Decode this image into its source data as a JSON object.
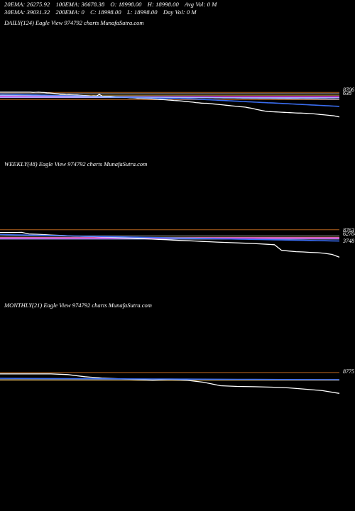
{
  "header": {
    "row1": [
      "20EMA: 26275.92",
      "100EMA: 36678.38",
      "O: 18998.00",
      "H: 18998.00",
      "Avg Vol: 0  M"
    ],
    "row2": [
      "30EMA: 39031.32",
      "200EMA: 0",
      "C: 18998.00",
      "L: 18998.00",
      "Day Vol: 0  M"
    ]
  },
  "colors": {
    "background": "#000000",
    "price": "#ffffff",
    "ema_blue": "#3a6df0",
    "ema_light": "#9fb7ff",
    "magenta": "#e040e0",
    "orange": "#b8641e",
    "grey": "#888888",
    "gold": "#c8a046"
  },
  "chart_data": [
    {
      "type": "line",
      "title": "DAILY(124) Eagle  View  974792  charts MunafaSutra.com",
      "right_labels": [
        "8706",
        "638"
      ],
      "series": [
        {
          "values": [
            7300,
            7300,
            7300,
            7300,
            7300,
            7300,
            7300,
            7300,
            7300,
            7300,
            7300,
            7300,
            7280,
            7290,
            7300,
            7280,
            7270,
            7250,
            7240,
            7220,
            7200,
            7180,
            7150,
            7140,
            7110,
            7120,
            7110,
            7100,
            7100,
            7080,
            7060,
            7050,
            7030,
            7010,
            7020,
            7010,
            7150,
            7010,
            7000,
            7000,
            7000,
            6990,
            6980,
            6960,
            6950,
            6930,
            6920,
            6900,
            6890,
            6880,
            6860,
            6860,
            6850,
            6840,
            6830,
            6820,
            6800,
            6780,
            6770,
            6760,
            6750,
            6730,
            6720,
            6700,
            6690,
            6680,
            6660,
            6640,
            6620,
            6600,
            6580,
            6550,
            6530,
            6510,
            6500,
            6500,
            6480,
            6460,
            6440,
            6420,
            6400,
            6380,
            6360,
            6340,
            6320,
            6300,
            6280,
            6260,
            6240,
            6220,
            6180,
            6150,
            6110,
            6060,
            6020,
            5980,
            5940,
            5910,
            5900,
            5890,
            5880,
            5870,
            5860,
            5850,
            5840,
            5830,
            5820,
            5810,
            5800,
            5800,
            5790,
            5780,
            5770,
            5760,
            5740,
            5720,
            5700,
            5680,
            5660,
            5640,
            5620,
            5600,
            5560,
            5520
          ]
        },
        {
          "values": [
            7160,
            7155,
            7150,
            7145,
            7140,
            7135,
            7130,
            7125,
            7120,
            7115,
            7110,
            7105,
            7100,
            7095,
            7090,
            7085,
            7080,
            7075,
            7070,
            7065,
            7060,
            7055,
            7050,
            7045,
            7040,
            7035,
            7030,
            7025,
            7020,
            7015,
            7010,
            7005,
            7000,
            6995,
            6990,
            6985,
            6980,
            6975,
            6970,
            6965,
            6960,
            6955,
            6950,
            6945,
            6940,
            6935,
            6930,
            6925,
            6920,
            6915,
            6910,
            6905,
            6900,
            6895,
            6890,
            6885,
            6880,
            6875,
            6870,
            6865,
            6860,
            6855,
            6850,
            6845,
            6840,
            6835,
            6830,
            6825,
            6820,
            6815,
            6810,
            6800,
            6790,
            6780,
            6770,
            6760,
            6750,
            6740,
            6730,
            6720,
            6710,
            6700,
            6690,
            6680,
            6670,
            6660,
            6650,
            6640,
            6630,
            6620,
            6610,
            6600,
            6590,
            6580,
            6570,
            6560,
            6550,
            6540,
            6530,
            6520,
            6510,
            6500,
            6490,
            6480,
            6470,
            6460,
            6450,
            6440,
            6430,
            6420,
            6410,
            6400,
            6390,
            6380,
            6370,
            6360,
            6350,
            6340,
            6330,
            6320,
            6310,
            6300,
            6290,
            6280
          ]
        },
        {
          "values": [
            7050,
            7050,
            7048,
            7046,
            7044,
            7042,
            7040,
            7038,
            7036,
            7034,
            7032,
            7030,
            7028,
            7026,
            7024,
            7022,
            7020,
            7018,
            7016,
            7014,
            7012,
            7010,
            7008,
            7006,
            7004,
            7002,
            7000,
            6998,
            6996,
            6994,
            6992,
            6990,
            6988,
            6986,
            6984,
            6982,
            6980,
            6978,
            6976,
            6974,
            6972,
            6970,
            6968,
            6966,
            6964,
            6962,
            6960,
            6958,
            6956,
            6954,
            6952,
            6950,
            6948,
            6946,
            6944,
            6942,
            6940,
            6938,
            6936,
            6934,
            6932,
            6930,
            6928,
            6926,
            6924,
            6922,
            6920,
            6918,
            6916,
            6914,
            6912,
            6910,
            6908,
            6906,
            6904,
            6902,
            6900,
            6898,
            6896,
            6894,
            6892,
            6890,
            6888,
            6886,
            6884,
            6882,
            6880,
            6878,
            6876,
            6874,
            6872,
            6870,
            6868,
            6866,
            6864,
            6862,
            6860,
            6858,
            6856,
            6854,
            6852,
            6850,
            6848,
            6846,
            6844,
            6842,
            6840,
            6838,
            6836,
            6834,
            6832,
            6830,
            6828,
            6826,
            6824,
            6822,
            6820,
            6818,
            6816,
            6814,
            6812,
            6810,
            6808,
            6806
          ]
        }
      ],
      "hlines": [
        7280,
        7200,
        7080,
        6960,
        6900,
        6760
      ],
      "ylim": [
        5000,
        7800
      ]
    },
    {
      "type": "line",
      "title": "WEEKLY(48) Eagle  View  974792  charts MunafaSutra.com",
      "right_labels": [
        "8763",
        "62704",
        "3748"
      ],
      "series": [
        {
          "values": [
            7300,
            7300,
            7300,
            7310,
            7200,
            7180,
            7150,
            7120,
            7100,
            7080,
            7050,
            7030,
            7010,
            7000,
            6980,
            6960,
            6940,
            6920,
            6900,
            6880,
            6850,
            6820,
            6800,
            6780,
            6750,
            6720,
            6700,
            6680,
            6650,
            6630,
            6600,
            6580,
            6560,
            6540,
            6520,
            6500,
            6470,
            6440,
            6410,
            6000,
            5950,
            5900,
            5880,
            5850,
            5830,
            5780,
            5700,
            5500
          ]
        },
        {
          "values": [
            7150,
            7140,
            7130,
            7120,
            7110,
            7100,
            7090,
            7080,
            7070,
            7060,
            7050,
            7040,
            7030,
            7020,
            7010,
            7000,
            6990,
            6980,
            6970,
            6960,
            6950,
            6940,
            6930,
            6920,
            6910,
            6900,
            6890,
            6880,
            6870,
            6860,
            6850,
            6840,
            6830,
            6820,
            6810,
            6800,
            6790,
            6780,
            6770,
            6760,
            6750,
            6740,
            6730,
            6720,
            6710,
            6700,
            6690,
            6680
          ]
        }
      ],
      "hlines": [
        7500,
        7060,
        6960,
        6900,
        6820
      ],
      "ylim": [
        5000,
        7800
      ]
    },
    {
      "type": "line",
      "title": "MONTHLY(21) Eagle  View  974792  charts MunafaSutra.com",
      "right_labels": [
        "8775"
      ],
      "series": [
        {
          "values": [
            7300,
            7300,
            7300,
            7300,
            7250,
            7100,
            7000,
            6950,
            6900,
            6850,
            6900,
            6850,
            6700,
            6450,
            6400,
            6380,
            6350,
            6300,
            6200,
            6100,
            5900
          ]
        },
        {
          "values": [
            6980,
            6975,
            6970,
            6965,
            6960,
            6955,
            6950,
            6945,
            6940,
            6935,
            6930,
            6925,
            6920,
            6915,
            6910,
            6905,
            6900,
            6895,
            6890,
            6885,
            6880
          ]
        }
      ],
      "hlines": [
        7400,
        6900,
        6840
      ],
      "ylim": [
        5000,
        7800
      ]
    }
  ]
}
